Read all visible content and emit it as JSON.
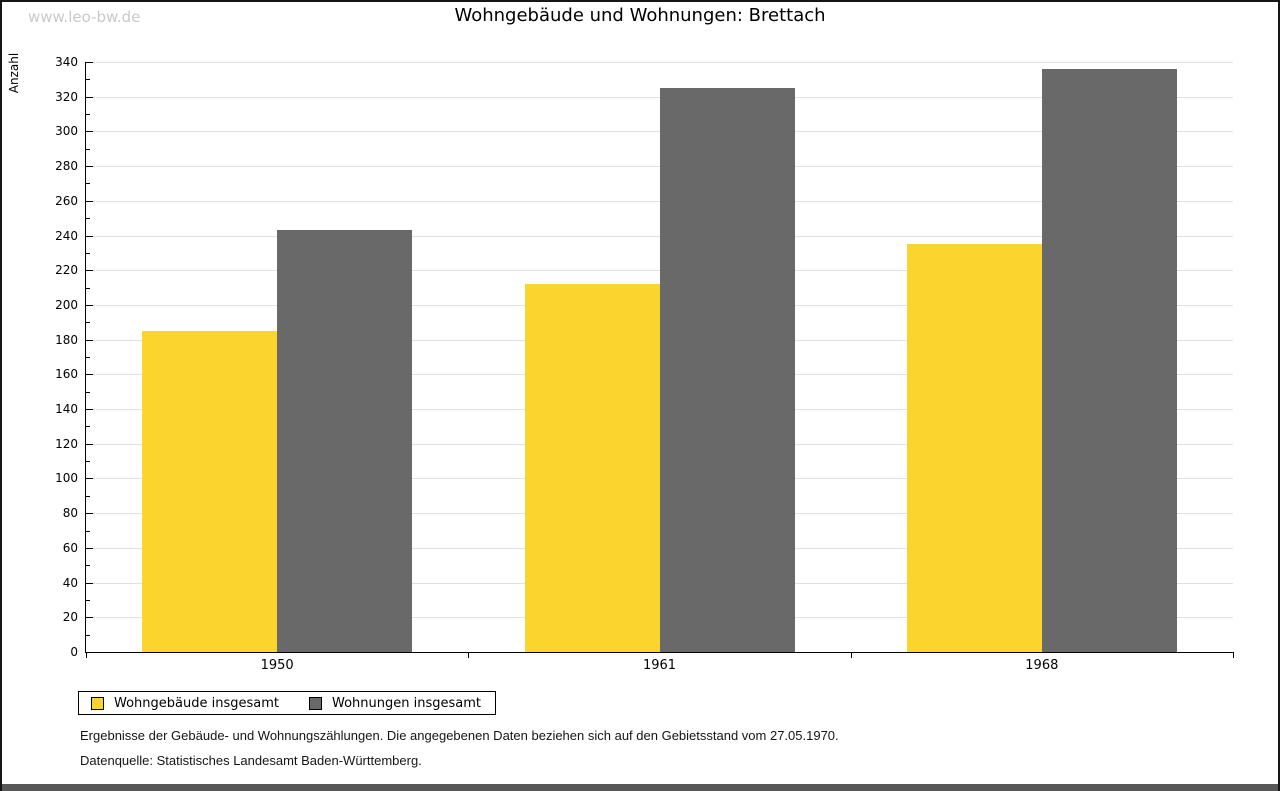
{
  "watermark": "www.leo-bw.de",
  "title": "Wohngebäude und Wohnungen: Brettach",
  "chart_data": {
    "type": "bar",
    "title": "Wohngebäude und Wohnungen: Brettach",
    "categories": [
      "1950",
      "1961",
      "1968"
    ],
    "series": [
      {
        "name": "Wohngebäude insgesamt",
        "color": "#FCD42E",
        "values": [
          185,
          212,
          235
        ]
      },
      {
        "name": "Wohnungen insgesamt",
        "color": "#696969",
        "values": [
          243,
          325,
          336
        ]
      }
    ],
    "xlabel": "",
    "ylabel": "Anzahl",
    "ylim": [
      0,
      340
    ],
    "ytick_step": 20,
    "minor_tick_step": 10,
    "grid": true,
    "legend_position": "bottom-left",
    "gridline_color": "#e1e1e1"
  },
  "footer": {
    "line1": "Ergebnisse der Gebäude- und Wohnungszählungen. Die angegebenen Daten beziehen sich auf den Gebietsstand vom 27.05.1970.",
    "line2": "Datenquelle: Statistisches Landesamt Baden-Württemberg."
  }
}
